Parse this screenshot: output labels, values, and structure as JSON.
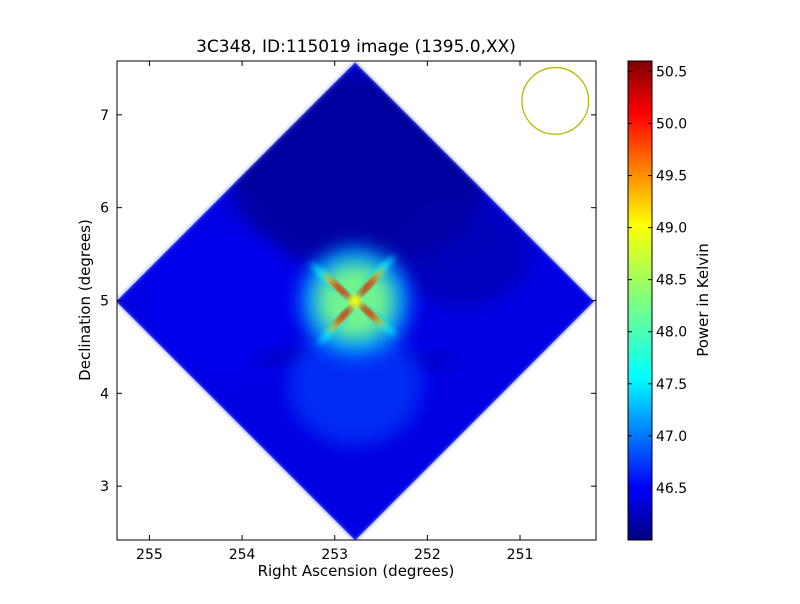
{
  "chart_data": {
    "type": "heatmap",
    "title": "3C348, ID:115019 image (1395.0,XX)",
    "xlabel": "Right Ascension (degrees)",
    "ylabel": "Declination (degrees)",
    "xlim": [
      255.35,
      250.18
    ],
    "ylim": [
      2.42,
      7.58
    ],
    "x_ticks": [
      255,
      254,
      253,
      252,
      251
    ],
    "y_ticks": [
      3,
      4,
      5,
      6,
      7
    ],
    "x_tick_labels": [
      "255",
      "254",
      "253",
      "252",
      "251"
    ],
    "y_tick_labels": [
      "3",
      "4",
      "5",
      "6",
      "7"
    ],
    "colorbar": {
      "label": "Power in Kelvin",
      "range": [
        46.0,
        50.6
      ],
      "ticks": [
        46.5,
        47.0,
        47.5,
        48.0,
        48.5,
        49.0,
        49.5,
        50.0,
        50.5
      ],
      "tick_labels": [
        "46.5",
        "47.0",
        "47.5",
        "48.0",
        "48.5",
        "49.0",
        "49.5",
        "50.0",
        "50.5"
      ],
      "colormap": "jet"
    },
    "beam": {
      "center_ra": 250.62,
      "center_dec": 7.15,
      "radius_deg": 0.36,
      "color": "#b8b800"
    },
    "field": {
      "center_ra": 252.78,
      "center_dec": 4.99,
      "half_diagonal_deg": 2.58,
      "background_level": 46.45,
      "peak_level": 50.3,
      "top_corner_level": 46.1
    },
    "grid": false,
    "legend": "none"
  }
}
